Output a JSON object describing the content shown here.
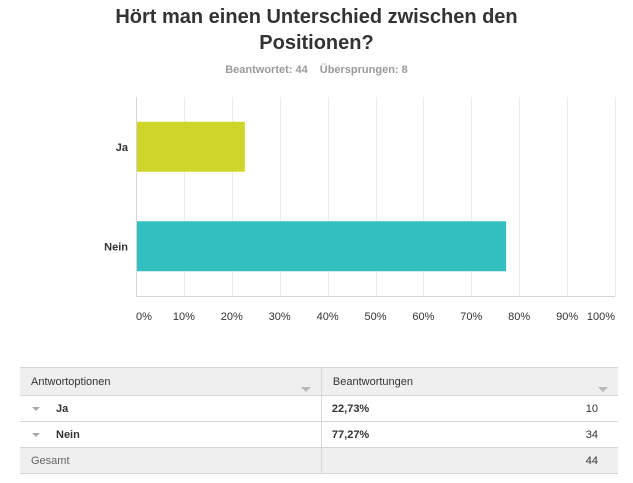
{
  "title_lines": [
    "Hört man einen Unterschied zwischen den",
    "Positionen?"
  ],
  "answered": "Beantwortet: 44",
  "skipped": "Übersprungen: 8",
  "chart_data": {
    "type": "bar",
    "orientation": "horizontal",
    "categories": [
      "Ja",
      "Nein"
    ],
    "values": [
      22.73,
      77.27
    ],
    "colors": [
      "#d0d629",
      "#33bfbf"
    ],
    "xlim": [
      0,
      100
    ],
    "xticks": [
      "0%",
      "10%",
      "20%",
      "30%",
      "40%",
      "50%",
      "60%",
      "70%",
      "80%",
      "90%",
      "100%"
    ],
    "grid": true
  },
  "table": {
    "header_options": "Antwortoptionen",
    "header_responses": "Beantwortungen",
    "rows": [
      {
        "label": "Ja",
        "percent": "22,73%",
        "count": "10"
      },
      {
        "label": "Nein",
        "percent": "77,27%",
        "count": "34"
      }
    ],
    "total_label": "Gesamt",
    "total_count": "44"
  }
}
